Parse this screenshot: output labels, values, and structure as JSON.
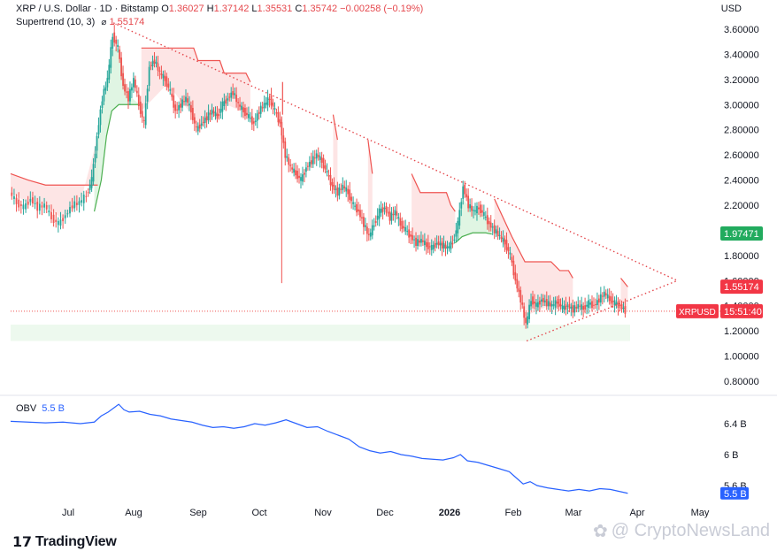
{
  "header": {
    "symbol": "XRP / U.S. Dollar · 1D · Bitstamp",
    "open_label": "O",
    "open": "1.36027",
    "high_label": "H",
    "high": "1.37142",
    "low_label": "L",
    "low": "1.35531",
    "close_label": "C",
    "close": "1.35742",
    "change": "−0.00258 (−0.19%)",
    "indicator": "Supertrend (10, 3)",
    "indicator_value": "1.55174",
    "currency": "USD"
  },
  "obv": {
    "label": "OBV",
    "value": "5.5 B"
  },
  "branding": {
    "logo": "TradingView",
    "watermark": "@ CryptoNewsLand"
  },
  "colors": {
    "up": "#26a69a",
    "down": "#ef5350",
    "supertrend_up": "#4caf50",
    "supertrend_down": "#ef5350",
    "obv_line": "#2962ff",
    "trend_line": "#e5484d"
  },
  "chart_data": [
    {
      "type": "candlestick",
      "y_ticks": [
        "3.60000",
        "3.40000",
        "3.20000",
        "3.00000",
        "2.80000",
        "2.60000",
        "2.40000",
        "2.20000",
        "1.80000",
        "1.60000",
        "1.40000",
        "1.20000",
        "1.00000",
        "0.80000"
      ],
      "ylim": [
        0.8,
        3.7
      ],
      "x_ticks": [
        "Jul",
        "Aug",
        "Sep",
        "Oct",
        "Nov",
        "Dec",
        "2026",
        "Feb",
        "Mar",
        "Apr",
        "May"
      ],
      "price_labels": {
        "supertrend_up": "1.97471",
        "supertrend_down": "1.55174",
        "symbol": "XRPUSD",
        "countdown": "15:51:40",
        "last_price": 1.357
      },
      "price_path": [
        [
          0,
          2.3
        ],
        [
          8,
          2.22
        ],
        [
          16,
          2.18
        ],
        [
          24,
          2.25
        ],
        [
          32,
          2.18
        ],
        [
          40,
          2.2
        ],
        [
          48,
          2.1
        ],
        [
          56,
          2.05
        ],
        [
          64,
          2.12
        ],
        [
          72,
          2.2
        ],
        [
          80,
          2.22
        ],
        [
          88,
          2.28
        ],
        [
          94,
          2.4
        ],
        [
          100,
          2.75
        ],
        [
          106,
          3.05
        ],
        [
          112,
          3.2
        ],
        [
          118,
          3.55
        ],
        [
          124,
          3.45
        ],
        [
          130,
          3.15
        ],
        [
          136,
          3.05
        ],
        [
          142,
          3.2
        ],
        [
          148,
          3.0
        ],
        [
          154,
          2.85
        ],
        [
          160,
          3.3
        ],
        [
          166,
          3.35
        ],
        [
          172,
          3.25
        ],
        [
          178,
          3.2
        ],
        [
          184,
          3.1
        ],
        [
          190,
          2.95
        ],
        [
          196,
          3.0
        ],
        [
          202,
          3.05
        ],
        [
          208,
          2.95
        ],
        [
          214,
          2.8
        ],
        [
          220,
          2.85
        ],
        [
          226,
          2.9
        ],
        [
          232,
          2.95
        ],
        [
          238,
          2.9
        ],
        [
          244,
          3.0
        ],
        [
          250,
          3.05
        ],
        [
          256,
          3.1
        ],
        [
          262,
          3.0
        ],
        [
          268,
          2.95
        ],
        [
          274,
          2.9
        ],
        [
          280,
          2.85
        ],
        [
          286,
          2.95
        ],
        [
          292,
          3.0
        ],
        [
          298,
          3.05
        ],
        [
          304,
          2.95
        ],
        [
          310,
          2.85
        ],
        [
          316,
          2.6
        ],
        [
          322,
          2.5
        ],
        [
          328,
          2.45
        ],
        [
          334,
          2.4
        ],
        [
          340,
          2.5
        ],
        [
          346,
          2.55
        ],
        [
          352,
          2.6
        ],
        [
          358,
          2.55
        ],
        [
          364,
          2.45
        ],
        [
          370,
          2.35
        ],
        [
          376,
          2.3
        ],
        [
          382,
          2.35
        ],
        [
          388,
          2.3
        ],
        [
          394,
          2.2
        ],
        [
          400,
          2.15
        ],
        [
          406,
          2.05
        ],
        [
          412,
          1.95
        ],
        [
          418,
          2.05
        ],
        [
          424,
          2.15
        ],
        [
          430,
          2.18
        ],
        [
          436,
          2.1
        ],
        [
          442,
          2.15
        ],
        [
          448,
          2.05
        ],
        [
          454,
          2.0
        ],
        [
          460,
          1.95
        ],
        [
          466,
          1.9
        ],
        [
          472,
          1.92
        ],
        [
          478,
          1.88
        ],
        [
          484,
          1.86
        ],
        [
          490,
          1.9
        ],
        [
          496,
          1.88
        ],
        [
          502,
          1.86
        ],
        [
          508,
          1.9
        ],
        [
          514,
          2.05
        ],
        [
          520,
          2.35
        ],
        [
          526,
          2.2
        ],
        [
          532,
          2.15
        ],
        [
          538,
          2.18
        ],
        [
          544,
          2.12
        ],
        [
          550,
          2.05
        ],
        [
          556,
          2.0
        ],
        [
          562,
          1.95
        ],
        [
          568,
          1.9
        ],
        [
          574,
          1.8
        ],
        [
          580,
          1.6
        ],
        [
          586,
          1.45
        ],
        [
          592,
          1.25
        ],
        [
          598,
          1.45
        ],
        [
          604,
          1.4
        ],
        [
          610,
          1.45
        ],
        [
          616,
          1.42
        ],
        [
          622,
          1.4
        ],
        [
          628,
          1.43
        ],
        [
          634,
          1.38
        ],
        [
          640,
          1.4
        ],
        [
          646,
          1.37
        ],
        [
          652,
          1.4
        ],
        [
          658,
          1.38
        ],
        [
          664,
          1.42
        ],
        [
          670,
          1.4
        ],
        [
          676,
          1.45
        ],
        [
          682,
          1.5
        ],
        [
          688,
          1.45
        ],
        [
          694,
          1.42
        ],
        [
          700,
          1.4
        ],
        [
          706,
          1.36
        ]
      ],
      "supertrend_down": [
        [
          0,
          2.45
        ],
        [
          20,
          2.4
        ],
        [
          40,
          2.36
        ],
        [
          60,
          2.36
        ],
        [
          80,
          2.36
        ],
        [
          100,
          2.36
        ],
        [
          150,
          3.45
        ],
        [
          180,
          3.45
        ],
        [
          210,
          3.45
        ],
        [
          215,
          3.35
        ],
        [
          240,
          3.35
        ],
        [
          245,
          3.25
        ],
        [
          270,
          3.25
        ],
        [
          275,
          3.18
        ],
        [
          312,
          3.18
        ],
        [
          312,
          2.92
        ],
        [
          370,
          2.92
        ],
        [
          375,
          2.72
        ],
        [
          410,
          2.72
        ],
        [
          415,
          2.45
        ],
        [
          460,
          2.45
        ],
        [
          470,
          2.3
        ],
        [
          500,
          2.3
        ],
        [
          505,
          2.2
        ],
        [
          510,
          2.15
        ],
        [
          555,
          2.25
        ],
        [
          575,
          1.95
        ],
        [
          590,
          1.75
        ],
        [
          620,
          1.75
        ],
        [
          630,
          1.68
        ],
        [
          640,
          1.68
        ],
        [
          645,
          1.62
        ],
        [
          700,
          1.62
        ],
        [
          708,
          1.55
        ]
      ],
      "supertrend_up": [
        [
          96,
          2.15
        ],
        [
          104,
          2.4
        ],
        [
          110,
          2.75
        ],
        [
          116,
          2.95
        ],
        [
          124,
          3.0
        ],
        [
          134,
          3.0
        ],
        [
          148,
          3.0
        ],
        [
          510,
          1.9
        ],
        [
          518,
          1.95
        ],
        [
          530,
          1.98
        ],
        [
          545,
          1.98
        ],
        [
          552,
          1.97
        ]
      ],
      "trendline_upper": [
        [
          118,
          3.65
        ],
        [
          765,
          1.6
        ]
      ],
      "trendline_lower": [
        [
          592,
          1.12
        ],
        [
          765,
          1.6
        ]
      ],
      "highlight_zone": [
        1.12,
        1.25
      ]
    },
    {
      "type": "line",
      "name": "OBV",
      "y_ticks": [
        "6.4 B",
        "6 B",
        "5.6 B"
      ],
      "ylim": [
        5.4,
        6.9
      ],
      "values": [
        [
          0,
          6.43
        ],
        [
          20,
          6.42
        ],
        [
          40,
          6.41
        ],
        [
          60,
          6.42
        ],
        [
          80,
          6.4
        ],
        [
          96,
          6.42
        ],
        [
          104,
          6.5
        ],
        [
          112,
          6.55
        ],
        [
          118,
          6.6
        ],
        [
          124,
          6.65
        ],
        [
          130,
          6.58
        ],
        [
          136,
          6.55
        ],
        [
          148,
          6.56
        ],
        [
          160,
          6.52
        ],
        [
          172,
          6.5
        ],
        [
          184,
          6.46
        ],
        [
          196,
          6.44
        ],
        [
          208,
          6.42
        ],
        [
          220,
          6.38
        ],
        [
          232,
          6.35
        ],
        [
          244,
          6.36
        ],
        [
          256,
          6.34
        ],
        [
          268,
          6.36
        ],
        [
          280,
          6.4
        ],
        [
          292,
          6.38
        ],
        [
          304,
          6.41
        ],
        [
          316,
          6.45
        ],
        [
          328,
          6.4
        ],
        [
          340,
          6.35
        ],
        [
          352,
          6.36
        ],
        [
          364,
          6.3
        ],
        [
          376,
          6.25
        ],
        [
          388,
          6.2
        ],
        [
          400,
          6.1
        ],
        [
          412,
          6.05
        ],
        [
          424,
          6.02
        ],
        [
          436,
          6.04
        ],
        [
          448,
          6.0
        ],
        [
          460,
          5.98
        ],
        [
          472,
          5.95
        ],
        [
          484,
          5.94
        ],
        [
          496,
          5.93
        ],
        [
          508,
          5.96
        ],
        [
          516,
          6.0
        ],
        [
          524,
          5.92
        ],
        [
          536,
          5.9
        ],
        [
          548,
          5.86
        ],
        [
          560,
          5.82
        ],
        [
          572,
          5.78
        ],
        [
          580,
          5.7
        ],
        [
          588,
          5.62
        ],
        [
          596,
          5.65
        ],
        [
          604,
          5.6
        ],
        [
          616,
          5.57
        ],
        [
          628,
          5.55
        ],
        [
          640,
          5.53
        ],
        [
          652,
          5.55
        ],
        [
          664,
          5.53
        ],
        [
          676,
          5.56
        ],
        [
          688,
          5.55
        ],
        [
          700,
          5.52
        ],
        [
          708,
          5.5
        ]
      ]
    }
  ]
}
